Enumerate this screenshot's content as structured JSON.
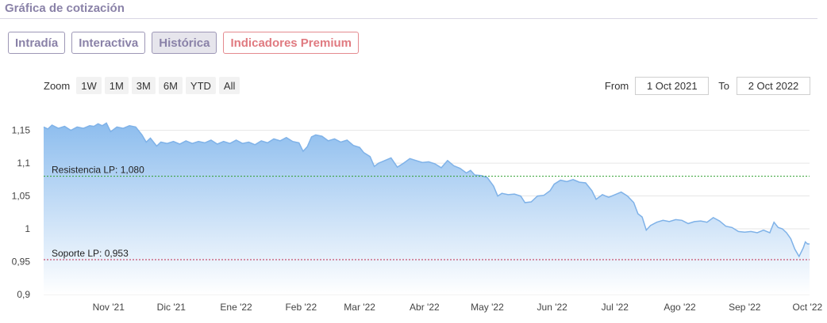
{
  "header": {
    "title": "Gráfica de cotización"
  },
  "tabs": [
    {
      "label": "Intradía"
    },
    {
      "label": "Interactiva"
    },
    {
      "label": "Histórica"
    },
    {
      "label": "Indicadores Premium"
    }
  ],
  "zoom": {
    "label": "Zoom",
    "buttons": [
      "1W",
      "1M",
      "3M",
      "6M",
      "YTD",
      "All"
    ]
  },
  "range": {
    "from_label": "From",
    "from_value": "1 Oct 2021",
    "to_label": "To",
    "to_value": "2 Oct 2022"
  },
  "colors": {
    "line": "#7fb2e8",
    "area_top": "#8dbdee",
    "area_bottom": "#ffffff",
    "resistance": "#2e9e2e",
    "support": "#c0264a",
    "grid": "#e6e6e6"
  },
  "chart_data": {
    "type": "area",
    "title": "",
    "xlabel": "",
    "ylabel": "",
    "ylim": [
      0.9,
      1.17
    ],
    "xlim": [
      "2021-10-01",
      "2022-10-02"
    ],
    "grid": true,
    "y_ticks": [
      {
        "value": 1.15,
        "label": "1,15"
      },
      {
        "value": 1.1,
        "label": "1,1"
      },
      {
        "value": 1.05,
        "label": "1,05"
      },
      {
        "value": 1.0,
        "label": "1"
      },
      {
        "value": 0.95,
        "label": "0,95"
      },
      {
        "value": 0.9,
        "label": "0,9"
      }
    ],
    "x_ticks": [
      {
        "date": "2021-11-01",
        "label": "Nov '21"
      },
      {
        "date": "2021-12-01",
        "label": "Dic '21"
      },
      {
        "date": "2022-01-01",
        "label": "Ene '22"
      },
      {
        "date": "2022-02-01",
        "label": "Feb '22"
      },
      {
        "date": "2022-03-01",
        "label": "Mar '22"
      },
      {
        "date": "2022-04-01",
        "label": "Abr '22"
      },
      {
        "date": "2022-05-01",
        "label": "May '22"
      },
      {
        "date": "2022-06-01",
        "label": "Jun '22"
      },
      {
        "date": "2022-07-01",
        "label": "Jul '22"
      },
      {
        "date": "2022-08-01",
        "label": "Ago '22"
      },
      {
        "date": "2022-09-01",
        "label": "Sep '22"
      },
      {
        "date": "2022-10-01",
        "label": "Oct '22"
      }
    ],
    "reference_lines": [
      {
        "label": "Resistencia LP: 1,080",
        "value": 1.08,
        "style": "dashed",
        "color": "#2e9e2e"
      },
      {
        "label": "Soporte LP: 0,953",
        "value": 0.953,
        "style": "dashed",
        "color": "#c0264a"
      }
    ],
    "series": [
      {
        "points": [
          [
            "2021-10-01",
            1.155
          ],
          [
            "2021-10-03",
            1.152
          ],
          [
            "2021-10-05",
            1.158
          ],
          [
            "2021-10-08",
            1.153
          ],
          [
            "2021-10-11",
            1.156
          ],
          [
            "2021-10-14",
            1.15
          ],
          [
            "2021-10-17",
            1.155
          ],
          [
            "2021-10-20",
            1.153
          ],
          [
            "2021-10-23",
            1.157
          ],
          [
            "2021-10-25",
            1.156
          ],
          [
            "2021-10-27",
            1.16
          ],
          [
            "2021-10-29",
            1.157
          ],
          [
            "2021-10-31",
            1.161
          ],
          [
            "2021-11-02",
            1.148
          ],
          [
            "2021-11-05",
            1.155
          ],
          [
            "2021-11-08",
            1.153
          ],
          [
            "2021-11-11",
            1.157
          ],
          [
            "2021-11-14",
            1.155
          ],
          [
            "2021-11-17",
            1.143
          ],
          [
            "2021-11-19",
            1.132
          ],
          [
            "2021-11-21",
            1.138
          ],
          [
            "2021-11-24",
            1.126
          ],
          [
            "2021-11-26",
            1.132
          ],
          [
            "2021-11-29",
            1.13
          ],
          [
            "2021-12-02",
            1.133
          ],
          [
            "2021-12-05",
            1.129
          ],
          [
            "2021-12-08",
            1.134
          ],
          [
            "2021-12-11",
            1.13
          ],
          [
            "2021-12-14",
            1.133
          ],
          [
            "2021-12-17",
            1.131
          ],
          [
            "2021-12-20",
            1.135
          ],
          [
            "2021-12-23",
            1.129
          ],
          [
            "2021-12-26",
            1.133
          ],
          [
            "2021-12-29",
            1.13
          ],
          [
            "2022-01-01",
            1.135
          ],
          [
            "2022-01-04",
            1.13
          ],
          [
            "2022-01-07",
            1.132
          ],
          [
            "2022-01-10",
            1.128
          ],
          [
            "2022-01-13",
            1.134
          ],
          [
            "2022-01-16",
            1.131
          ],
          [
            "2022-01-19",
            1.137
          ],
          [
            "2022-01-22",
            1.134
          ],
          [
            "2022-01-25",
            1.139
          ],
          [
            "2022-01-28",
            1.133
          ],
          [
            "2022-01-31",
            1.131
          ],
          [
            "2022-02-02",
            1.118
          ],
          [
            "2022-02-04",
            1.125
          ],
          [
            "2022-02-06",
            1.14
          ],
          [
            "2022-02-08",
            1.143
          ],
          [
            "2022-02-11",
            1.141
          ],
          [
            "2022-02-14",
            1.134
          ],
          [
            "2022-02-17",
            1.137
          ],
          [
            "2022-02-20",
            1.132
          ],
          [
            "2022-02-23",
            1.135
          ],
          [
            "2022-02-26",
            1.127
          ],
          [
            "2022-03-01",
            1.124
          ],
          [
            "2022-03-03",
            1.116
          ],
          [
            "2022-03-06",
            1.11
          ],
          [
            "2022-03-08",
            1.095
          ],
          [
            "2022-03-10",
            1.1
          ],
          [
            "2022-03-13",
            1.104
          ],
          [
            "2022-03-16",
            1.108
          ],
          [
            "2022-03-19",
            1.094
          ],
          [
            "2022-03-22",
            1.1
          ],
          [
            "2022-03-25",
            1.107
          ],
          [
            "2022-03-28",
            1.104
          ],
          [
            "2022-03-31",
            1.101
          ],
          [
            "2022-04-03",
            1.102
          ],
          [
            "2022-04-06",
            1.099
          ],
          [
            "2022-04-09",
            1.093
          ],
          [
            "2022-04-12",
            1.104
          ],
          [
            "2022-04-15",
            1.096
          ],
          [
            "2022-04-18",
            1.092
          ],
          [
            "2022-04-21",
            1.085
          ],
          [
            "2022-04-23",
            1.089
          ],
          [
            "2022-04-25",
            1.082
          ],
          [
            "2022-04-28",
            1.081
          ],
          [
            "2022-05-01",
            1.078
          ],
          [
            "2022-05-04",
            1.065
          ],
          [
            "2022-05-06",
            1.05
          ],
          [
            "2022-05-08",
            1.054
          ],
          [
            "2022-05-11",
            1.052
          ],
          [
            "2022-05-14",
            1.053
          ],
          [
            "2022-05-17",
            1.05
          ],
          [
            "2022-05-19",
            1.04
          ],
          [
            "2022-05-22",
            1.041
          ],
          [
            "2022-05-25",
            1.05
          ],
          [
            "2022-05-28",
            1.051
          ],
          [
            "2022-05-31",
            1.058
          ],
          [
            "2022-06-02",
            1.068
          ],
          [
            "2022-06-05",
            1.074
          ],
          [
            "2022-06-08",
            1.072
          ],
          [
            "2022-06-11",
            1.075
          ],
          [
            "2022-06-14",
            1.071
          ],
          [
            "2022-06-17",
            1.07
          ],
          [
            "2022-06-20",
            1.058
          ],
          [
            "2022-06-22",
            1.045
          ],
          [
            "2022-06-25",
            1.052
          ],
          [
            "2022-06-28",
            1.048
          ],
          [
            "2022-07-01",
            1.052
          ],
          [
            "2022-07-04",
            1.056
          ],
          [
            "2022-07-07",
            1.05
          ],
          [
            "2022-07-10",
            1.04
          ],
          [
            "2022-07-12",
            1.023
          ],
          [
            "2022-07-14",
            1.018
          ],
          [
            "2022-07-16",
            0.998
          ],
          [
            "2022-07-18",
            1.005
          ],
          [
            "2022-07-21",
            1.01
          ],
          [
            "2022-07-24",
            1.013
          ],
          [
            "2022-07-27",
            1.011
          ],
          [
            "2022-07-30",
            1.014
          ],
          [
            "2022-08-02",
            1.013
          ],
          [
            "2022-08-05",
            1.008
          ],
          [
            "2022-08-08",
            1.011
          ],
          [
            "2022-08-11",
            1.012
          ],
          [
            "2022-08-14",
            1.01
          ],
          [
            "2022-08-17",
            1.017
          ],
          [
            "2022-08-20",
            1.012
          ],
          [
            "2022-08-23",
            1.004
          ],
          [
            "2022-08-26",
            1.002
          ],
          [
            "2022-08-29",
            0.996
          ],
          [
            "2022-09-01",
            0.995
          ],
          [
            "2022-09-04",
            0.996
          ],
          [
            "2022-09-07",
            0.994
          ],
          [
            "2022-09-10",
            0.998
          ],
          [
            "2022-09-13",
            0.994
          ],
          [
            "2022-09-15",
            1.01
          ],
          [
            "2022-09-17",
            1.002
          ],
          [
            "2022-09-19",
            1.0
          ],
          [
            "2022-09-21",
            0.994
          ],
          [
            "2022-09-23",
            0.985
          ],
          [
            "2022-09-25",
            0.969
          ],
          [
            "2022-09-27",
            0.958
          ],
          [
            "2022-09-29",
            0.971
          ],
          [
            "2022-09-30",
            0.98
          ],
          [
            "2022-10-01",
            0.977
          ],
          [
            "2022-10-02",
            0.977
          ]
        ]
      }
    ]
  }
}
